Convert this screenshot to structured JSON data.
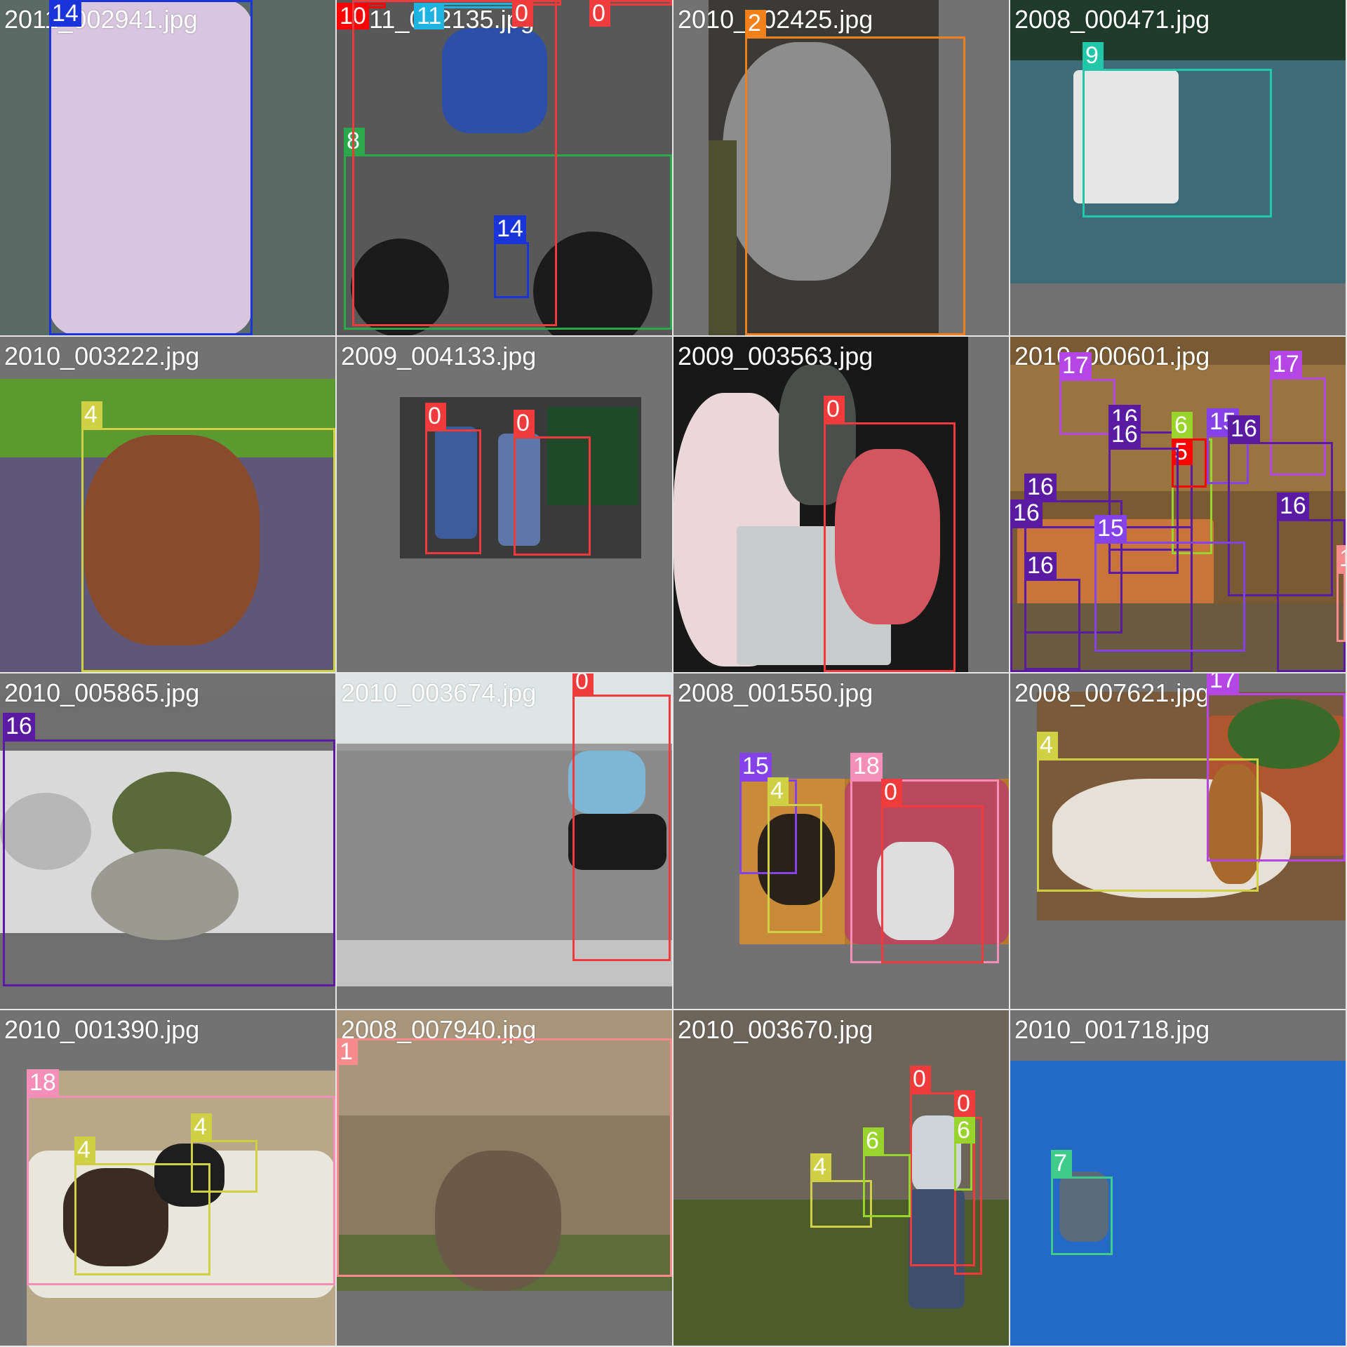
{
  "class_colors": {
    "0": "#ef3b3b",
    "1": "#f78a8a",
    "2": "#f2801b",
    "4": "#cfd043",
    "6": "#98d42c",
    "7": "#3ecb8c",
    "8": "#2aa84a",
    "9": "#22c6a9",
    "11": "#1fb4e0",
    "14": "#1934d8",
    "15": "#8442e8",
    "16": "#5a1aa1",
    "17": "#b546e6",
    "18": "#f58fb7"
  },
  "tiles": [
    {
      "title": "2011_002941.jpg",
      "photo": {
        "color": "#5c6a66"
      },
      "scene": [
        {
          "name": "bottle-body",
          "color": "#d8c6df"
        }
      ],
      "boxes": [
        {
          "label": "14"
        }
      ]
    },
    {
      "title": "2011_002135.jpg",
      "photo": {
        "color": "#585858"
      },
      "scene": [
        {
          "name": "cyclist-jersey",
          "color": "#2c4fa8"
        },
        {
          "name": "bike-wheel-front",
          "color": "#1b1b1b"
        },
        {
          "name": "bike-wheel-rear",
          "color": "#1b1b1b"
        }
      ],
      "boxes": [
        {
          "label": "10"
        },
        {
          "label": "11"
        },
        {
          "label": "0"
        },
        {
          "label": "0"
        },
        {
          "label": "8"
        },
        {
          "label": "14"
        },
        {
          "label": "0"
        }
      ]
    },
    {
      "title": "2010_002425.jpg",
      "photo": {
        "color": "#3c3a36"
      },
      "scene": [
        {
          "name": "cat-body",
          "color": "#8d8d8d"
        },
        {
          "name": "sofa",
          "color": "#4c5030"
        }
      ],
      "boxes": [
        {
          "label": "2"
        }
      ]
    },
    {
      "title": "2008_000471.jpg",
      "photo": {
        "color": "#3d6b78"
      },
      "scene": [
        {
          "name": "shore-trees",
          "color": "#1f3b2b"
        },
        {
          "name": "sail",
          "color": "#e6e6e6"
        }
      ],
      "boxes": [
        {
          "label": "9"
        }
      ]
    },
    {
      "title": "2010_003222.jpg",
      "photo": {
        "color": "#5e5778"
      },
      "scene": [
        {
          "name": "grass",
          "color": "#5a9a30"
        },
        {
          "name": "bulldog-body",
          "color": "#8a4b2c"
        }
      ],
      "boxes": [
        {
          "label": "4"
        }
      ]
    },
    {
      "title": "2009_004133.jpg",
      "photo": {
        "color": "#3a3a3a"
      },
      "scene": [
        {
          "name": "plants",
          "color": "#1e4a2a"
        },
        {
          "name": "person-left-outfit",
          "color": "#3c5d9a"
        },
        {
          "name": "person-right-outfit",
          "color": "#5d78a8"
        }
      ],
      "boxes": [
        {
          "label": "0"
        },
        {
          "label": "0"
        }
      ]
    },
    {
      "title": "2009_003563.jpg",
      "photo": {
        "color": "#181818"
      },
      "scene": [
        {
          "name": "girl-left-dress",
          "color": "#e9d7d9"
        },
        {
          "name": "statue",
          "color": "#4a4f4c"
        },
        {
          "name": "pedestal",
          "color": "#c9cccc"
        },
        {
          "name": "girl-right-dress",
          "color": "#d2555f"
        }
      ],
      "boxes": [
        {
          "label": "0"
        }
      ]
    },
    {
      "title": "2010_000601.jpg",
      "photo": {
        "color": "#7a5a32"
      },
      "scene": [
        {
          "name": "back-wall",
          "color": "#9a7440"
        },
        {
          "name": "tables",
          "color": "#c8743a"
        },
        {
          "name": "floor",
          "color": "#6a5a40"
        }
      ],
      "boxes": [
        {
          "label": "17"
        },
        {
          "label": "17"
        },
        {
          "label": "16"
        },
        {
          "label": "6"
        },
        {
          "label": "15"
        },
        {
          "label": "5"
        },
        {
          "label": "16"
        },
        {
          "label": "16"
        },
        {
          "label": "16"
        },
        {
          "label": "16"
        },
        {
          "label": "15"
        },
        {
          "label": "16"
        },
        {
          "label": "16"
        },
        {
          "label": "1"
        }
      ]
    },
    {
      "title": "2010_005865.jpg",
      "photo": {
        "color": "#6e6e6e"
      },
      "scene": [
        {
          "name": "table-top",
          "color": "#d9d9d9"
        },
        {
          "name": "dish-center",
          "color": "#5a6a3a"
        },
        {
          "name": "dish-left",
          "color": "#b7b7b7"
        },
        {
          "name": "dish-bottom",
          "color": "#9a9a90"
        }
      ],
      "boxes": [
        {
          "label": "16"
        }
      ]
    },
    {
      "title": "2010_003674.jpg",
      "photo": {
        "color": "#9b9b9b"
      },
      "scene": [
        {
          "name": "window",
          "color": "#dfe5e5"
        },
        {
          "name": "stone-wall",
          "color": "#8a8a8a"
        },
        {
          "name": "pavement",
          "color": "#c3c3c3"
        },
        {
          "name": "woman-top",
          "color": "#7eb6d6"
        },
        {
          "name": "woman-skirt",
          "color": "#1b1b1b"
        }
      ],
      "boxes": [
        {
          "label": "0"
        }
      ]
    },
    {
      "title": "2008_001550.jpg",
      "photo": {
        "color": "#b47a2e"
      },
      "scene": [
        {
          "name": "floor-wood",
          "color": "#c98a3a"
        },
        {
          "name": "dog",
          "color": "#2a2218"
        },
        {
          "name": "couch",
          "color": "#b8495e"
        },
        {
          "name": "blanket",
          "color": "#dedede"
        }
      ],
      "boxes": [
        {
          "label": "15"
        },
        {
          "label": "4"
        },
        {
          "label": "18"
        },
        {
          "label": "0"
        }
      ]
    },
    {
      "title": "2008_007621.jpg",
      "photo": {
        "color": "#7a5a3a"
      },
      "scene": [
        {
          "name": "planter",
          "color": "#b0562e"
        },
        {
          "name": "plant",
          "color": "#3a6a2a"
        },
        {
          "name": "hound-body",
          "color": "#e6e0d6"
        },
        {
          "name": "hound-ear",
          "color": "#a86a2c"
        }
      ],
      "boxes": [
        {
          "label": "4"
        },
        {
          "label": "17"
        }
      ]
    },
    {
      "title": "2010_001390.jpg",
      "photo": {
        "color": "#b8a888"
      },
      "scene": [
        {
          "name": "blanket",
          "color": "#e9e6dc"
        },
        {
          "name": "dog-brindle",
          "color": "#3a2c22"
        },
        {
          "name": "dog-bw",
          "color": "#1e1e1e"
        }
      ],
      "boxes": [
        {
          "label": "18"
        },
        {
          "label": "4"
        },
        {
          "label": "4"
        }
      ]
    },
    {
      "title": "2008_007940.jpg",
      "photo": {
        "color": "#8a7a62"
      },
      "scene": [
        {
          "name": "fence-posts",
          "color": "#a8957a"
        },
        {
          "name": "grass",
          "color": "#5d6c3a"
        },
        {
          "name": "owl-body",
          "color": "#6a5a48"
        }
      ],
      "boxes": [
        {
          "label": "1"
        }
      ]
    },
    {
      "title": "2010_003670.jpg",
      "photo": {
        "color": "#5a5348"
      },
      "scene": [
        {
          "name": "barn-wall",
          "color": "#6e655a"
        },
        {
          "name": "field",
          "color": "#4c5c2a"
        },
        {
          "name": "man-shirt",
          "color": "#cfd4d8"
        },
        {
          "name": "man-jeans",
          "color": "#3e4f6e"
        }
      ],
      "boxes": [
        {
          "label": "0"
        },
        {
          "label": "0"
        },
        {
          "label": "6"
        },
        {
          "label": "4"
        },
        {
          "label": "6"
        }
      ]
    },
    {
      "title": "2010_001718.jpg",
      "photo": {
        "color": "#2369c5"
      },
      "scene": [
        {
          "name": "airplane",
          "color": "#5b6a7a"
        }
      ],
      "boxes": [
        {
          "label": "7"
        }
      ]
    }
  ]
}
